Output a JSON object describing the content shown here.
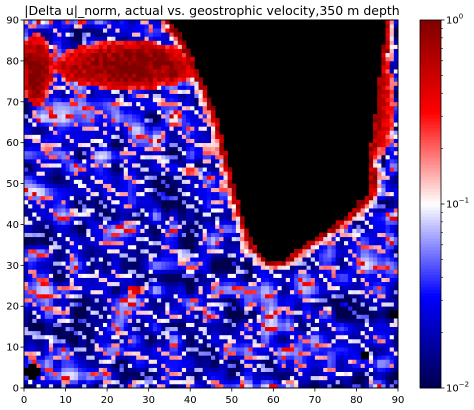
{
  "chart_data": {
    "type": "heatmap",
    "title": "|Delta u|_norm, actual vs. geostrophic velocity,350 m depth",
    "xlabel": "",
    "ylabel": "",
    "xlim": [
      0,
      90
    ],
    "ylim": [
      0,
      90
    ],
    "x_ticks": [
      0,
      10,
      20,
      30,
      40,
      50,
      60,
      70,
      80,
      90
    ],
    "y_ticks": [
      0,
      10,
      20,
      30,
      40,
      50,
      60,
      70,
      80,
      90
    ],
    "grid_resolution": 90,
    "colormap": "seismic",
    "masked_color": "#000000",
    "colorbar": {
      "scale": "log",
      "range": [
        0.01,
        1
      ],
      "major_ticks": [
        {
          "value": 0.01,
          "base": "10",
          "exponent": "−2"
        },
        {
          "value": 0.1,
          "base": "10",
          "exponent": "−1"
        },
        {
          "value": 1,
          "base": "10",
          "exponent": "0"
        }
      ]
    },
    "regions": {
      "land_mask_description_in_data_units": "top-right landmass",
      "land": [
        [
          35,
          90
        ],
        [
          38,
          86
        ],
        [
          40,
          82
        ],
        [
          43,
          75
        ],
        [
          46,
          68
        ],
        [
          48,
          60
        ],
        [
          50,
          52
        ],
        [
          52,
          44
        ],
        [
          54,
          38
        ],
        [
          56,
          34
        ],
        [
          59,
          31
        ],
        [
          62,
          31
        ],
        [
          66,
          34
        ],
        [
          72,
          38
        ],
        [
          76,
          41
        ],
        [
          80,
          44
        ],
        [
          82,
          52
        ],
        [
          84,
          62
        ],
        [
          85,
          72
        ],
        [
          86,
          80
        ],
        [
          87,
          88
        ],
        [
          87,
          90
        ]
      ],
      "island": [
        [
          81,
          56
        ],
        [
          82.5,
          55
        ],
        [
          83.5,
          53
        ],
        [
          83.5,
          49
        ],
        [
          82.5,
          46.5
        ],
        [
          81.2,
          45.5
        ],
        [
          80.5,
          48
        ],
        [
          80.2,
          52
        ],
        [
          80.6,
          55
        ]
      ],
      "small_masks": [
        [
          2,
          4,
          1.6
        ],
        [
          89.5,
          18,
          1.3
        ],
        [
          82,
          8,
          1.1
        ]
      ]
    },
    "value_fields": {
      "high_patches": [
        {
          "x": 25,
          "y": 79,
          "rx": 18,
          "ry": 6,
          "log_value": -0.05
        },
        {
          "x": 3,
          "y": 78,
          "rx": 4,
          "ry": 9,
          "log_value": -0.1
        },
        {
          "x": 85,
          "y": 70,
          "rx": 4,
          "ry": 14,
          "log_value": -0.15
        },
        {
          "x": 27,
          "y": 24,
          "rx": 2,
          "ry": 1.5,
          "log_value": -0.2
        },
        {
          "x": 40,
          "y": 53,
          "rx": 2,
          "ry": 1,
          "log_value": -0.4
        }
      ],
      "background_log_value": -1.6
    }
  }
}
